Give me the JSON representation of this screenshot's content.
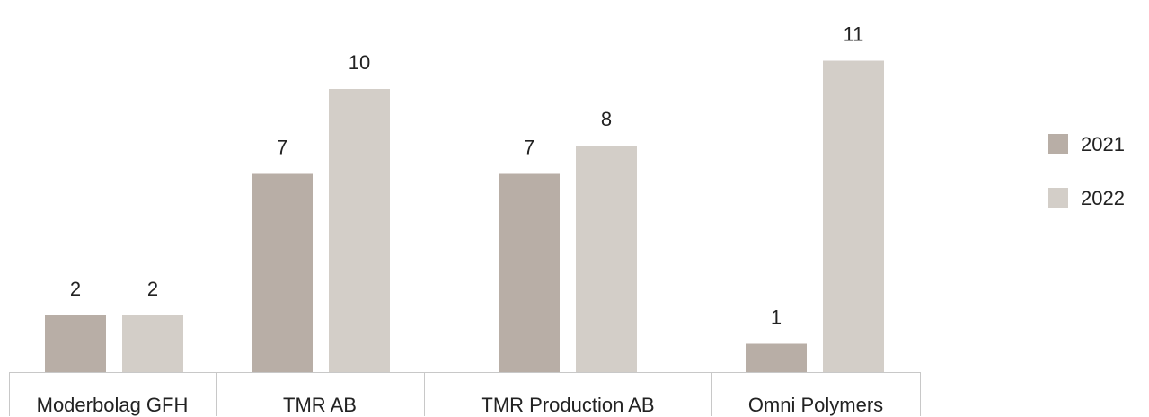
{
  "chart_data": {
    "type": "bar",
    "categories": [
      "Moderbolag GFH",
      "TMR AB",
      "TMR Production AB",
      "Omni Polymers"
    ],
    "series": [
      {
        "name": "2021",
        "values": [
          2,
          7,
          7,
          1
        ],
        "color": "#b8aea6"
      },
      {
        "name": "2022",
        "values": [
          2,
          10,
          8,
          11
        ],
        "color": "#d3cec8"
      }
    ],
    "ylim": [
      0,
      11
    ],
    "grid": false,
    "legend": "right"
  }
}
